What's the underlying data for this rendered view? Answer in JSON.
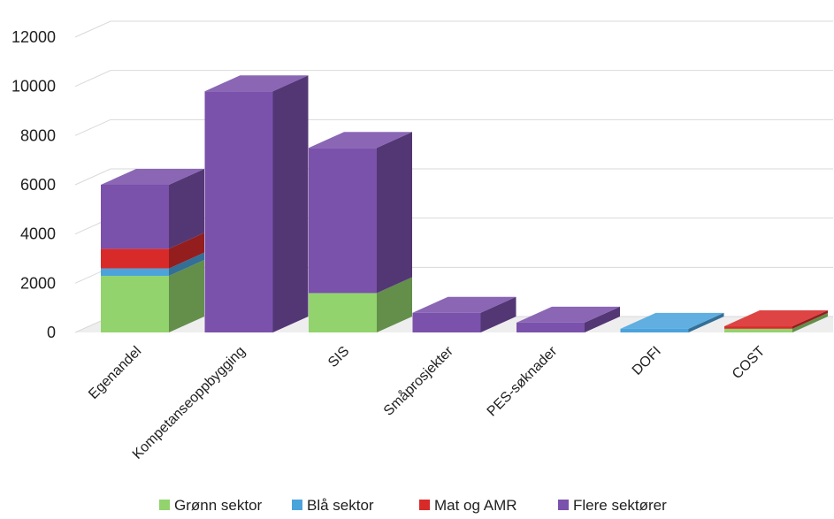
{
  "chart_data": {
    "type": "bar",
    "stacked": true,
    "three_d": true,
    "categories": [
      "Egenandel",
      "Kompetanseoppbygging",
      "SIS",
      "Småprosjekter",
      "PES-søknader",
      "DOFI",
      "COST"
    ],
    "series": [
      {
        "name": "Grønn sektor",
        "color": "#92d36e",
        "values": [
          2300,
          0,
          1600,
          0,
          0,
          0,
          150
        ]
      },
      {
        "name": "Blå sektor",
        "color": "#4ba3dc",
        "values": [
          300,
          0,
          0,
          0,
          0,
          150,
          0
        ]
      },
      {
        "name": "Mat og AMR",
        "color": "#d92a2a",
        "values": [
          800,
          0,
          0,
          0,
          0,
          0,
          100
        ]
      },
      {
        "name": "Flere sektører",
        "color": "#7a51ab",
        "values": [
          2600,
          9800,
          5900,
          800,
          400,
          0,
          0
        ]
      }
    ],
    "yticks": [
      0,
      2000,
      4000,
      6000,
      8000,
      10000,
      12000
    ],
    "ylim": [
      0,
      12000
    ],
    "grid": true,
    "legend_position": "bottom"
  }
}
